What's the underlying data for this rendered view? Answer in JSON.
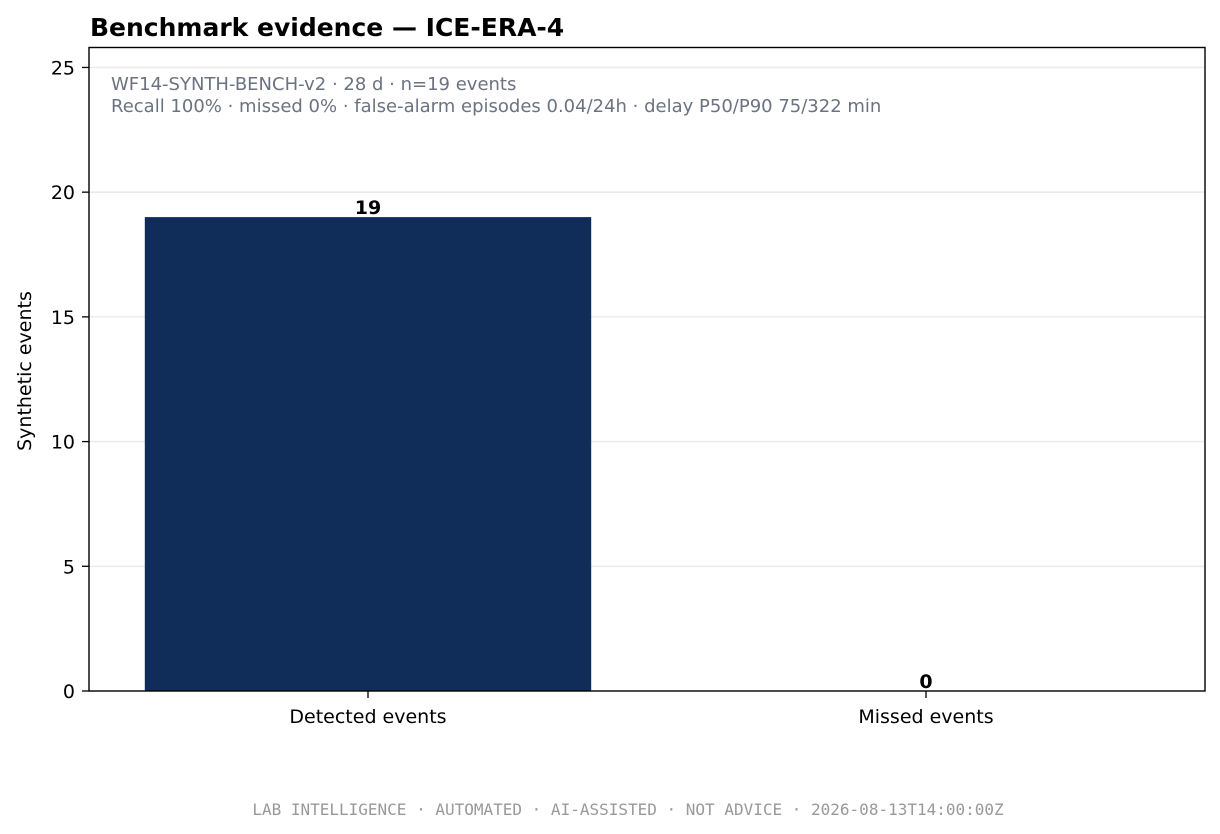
{
  "chart_data": {
    "type": "bar",
    "title": "Benchmark evidence — ICE-ERA-4",
    "categories": [
      "Detected events",
      "Missed events"
    ],
    "values": [
      19,
      0
    ],
    "data_labels": [
      "19",
      "0"
    ],
    "ylabel": "Synthetic events",
    "xlabel": "",
    "ylim": [
      0,
      25.8
    ],
    "yticks": [
      0,
      5,
      10,
      15,
      20,
      25
    ],
    "ytick_labels": [
      "0",
      "5",
      "10",
      "15",
      "20",
      "25"
    ],
    "grid": "horizontal",
    "annotations": [
      "WF14-SYNTH-BENCH-v2 · 28 d · n=19 events",
      "Recall 100% · missed 0% · false-alarm episodes 0.04/24h · delay P50/P90 75/322 min"
    ],
    "colors": {
      "bar": "#102d5a",
      "grid": "#ebebeb",
      "annotation_text": "#6b7280",
      "footer_text": "#999999"
    }
  },
  "footer": "LAB INTELLIGENCE · AUTOMATED · AI-ASSISTED · NOT ADVICE · 2026-08-13T14:00:00Z"
}
